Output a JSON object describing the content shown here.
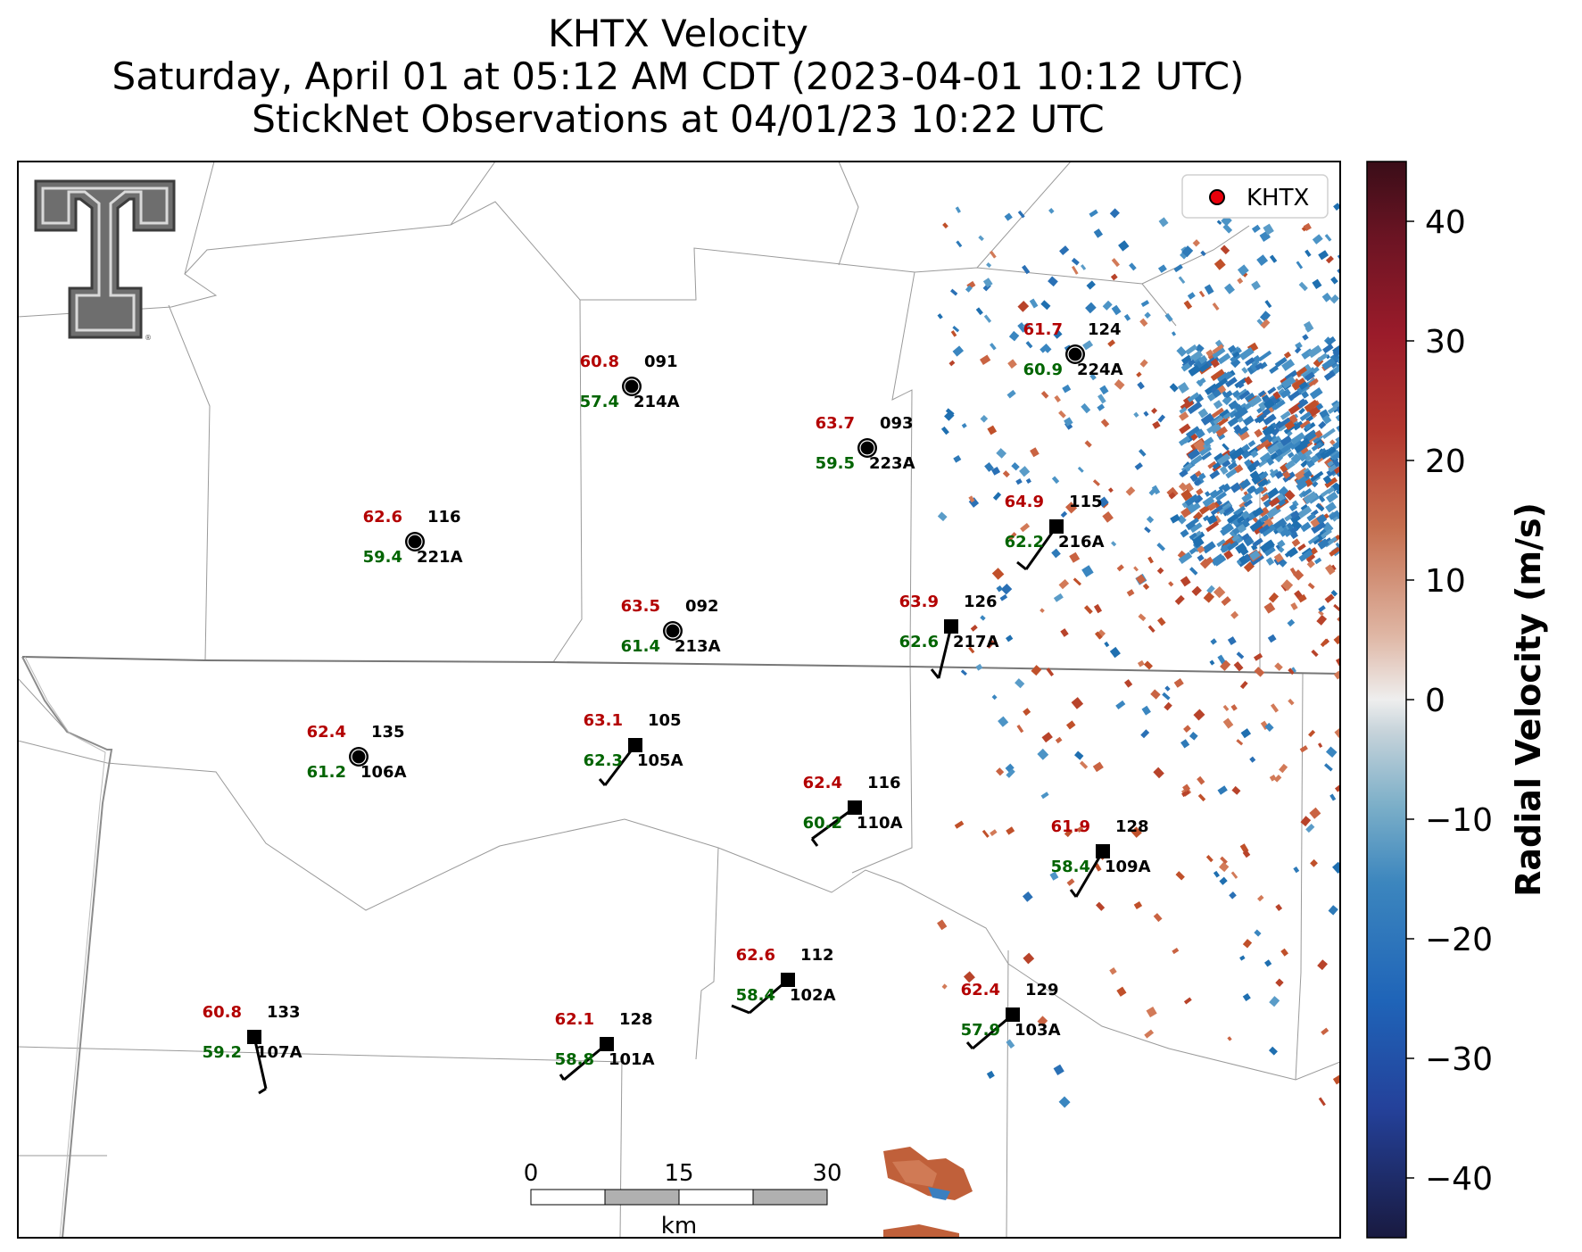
{
  "title": {
    "line1": "KHTX Velocity",
    "line2": "Saturday, April 01 at 05:12 AM CDT (2023-04-01 10:12 UTC)",
    "line3": "StickNet Observations at 04/01/23 10:22 UTC"
  },
  "legend": {
    "label": "KHTX",
    "marker_color": "#e8000b"
  },
  "colorbar": {
    "label": "Radial Velocity (m/s)",
    "ticks": [
      "40",
      "30",
      "20",
      "10",
      "0",
      "−10",
      "−20",
      "−30",
      "−40"
    ],
    "range": [
      -45,
      45
    ]
  },
  "scalebar": {
    "ticks": [
      "0",
      "15",
      "30"
    ],
    "unit": "km"
  },
  "colors": {
    "temperature": "#b30000",
    "dewpoint": "#006400",
    "velocity_outbound": "#c0502a",
    "velocity_inbound": "#2e7ab8"
  },
  "stations": [
    {
      "id": "091",
      "probe": "214A",
      "temp": "60.8",
      "dew": "57.4",
      "calm": true
    },
    {
      "id": "124",
      "probe": "224A",
      "temp": "61.7",
      "dew": "60.9",
      "calm": true
    },
    {
      "id": "093",
      "probe": "223A",
      "temp": "63.7",
      "dew": "59.5",
      "calm": true
    },
    {
      "id": "116",
      "probe": "221A",
      "temp": "62.6",
      "dew": "59.4",
      "calm": true
    },
    {
      "id": "115",
      "probe": "216A",
      "temp": "64.9",
      "dew": "62.2",
      "calm": false
    },
    {
      "id": "092",
      "probe": "213A",
      "temp": "63.5",
      "dew": "61.4",
      "calm": true
    },
    {
      "id": "126",
      "probe": "217A",
      "temp": "63.9",
      "dew": "62.6",
      "calm": false
    },
    {
      "id": "135",
      "probe": "106A",
      "temp": "62.4",
      "dew": "61.2",
      "calm": true
    },
    {
      "id": "105",
      "probe": "105A",
      "temp": "63.1",
      "dew": "62.3",
      "calm": false
    },
    {
      "id": "116",
      "probe": "110A",
      "temp": "62.4",
      "dew": "60.2",
      "calm": false
    },
    {
      "id": "128",
      "probe": "109A",
      "temp": "61.9",
      "dew": "58.4",
      "calm": false
    },
    {
      "id": "112",
      "probe": "102A",
      "temp": "62.6",
      "dew": "58.4",
      "calm": false
    },
    {
      "id": "133",
      "probe": "107A",
      "temp": "60.8",
      "dew": "59.2",
      "calm": false
    },
    {
      "id": "128",
      "probe": "101A",
      "temp": "62.1",
      "dew": "58.8",
      "calm": false
    },
    {
      "id": "129",
      "probe": "103A",
      "temp": "62.4",
      "dew": "57.9",
      "calm": false
    }
  ]
}
